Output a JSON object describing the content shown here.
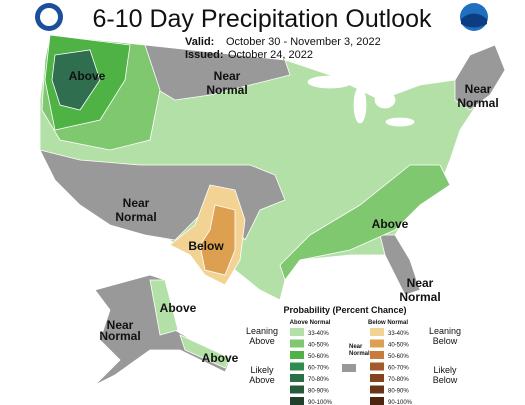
{
  "header": {
    "title": "6-10 Day Precipitation Outlook",
    "valid_label": "Valid:",
    "valid": "October 30 - November 3, 2022",
    "issued_label": "Issued:",
    "issued": "October 24, 2022"
  },
  "map_labels": [
    {
      "lines": [
        "Above"
      ]
    },
    {
      "lines": [
        "Near",
        "Normal"
      ]
    },
    {
      "lines": [
        "Near",
        "Normal"
      ]
    },
    {
      "lines": [
        "Near",
        "Normal"
      ]
    },
    {
      "lines": [
        "Below"
      ]
    },
    {
      "lines": [
        "Above"
      ]
    },
    {
      "lines": [
        "Near",
        "Normal"
      ]
    },
    {
      "lines": [
        "Above"
      ]
    },
    {
      "lines": [
        "Near",
        "Normal"
      ]
    },
    {
      "lines": [
        "Above"
      ]
    }
  ],
  "legend": {
    "title": "Probability (Percent Chance)",
    "above_heading": "Above Normal",
    "below_heading": "Below Normal",
    "near_heading": [
      "Near",
      "Normal"
    ],
    "near_color": "#999999",
    "above": [
      {
        "label": "33-40%",
        "color": "#b3e0a6"
      },
      {
        "label": "40-50%",
        "color": "#80c870"
      },
      {
        "label": "50-60%",
        "color": "#4fb244"
      },
      {
        "label": "60-70%",
        "color": "#2f8b4e"
      },
      {
        "label": "70-80%",
        "color": "#2b6f48"
      },
      {
        "label": "80-90%",
        "color": "#285a3c"
      },
      {
        "label": "90-100%",
        "color": "#20402c"
      }
    ],
    "below": [
      {
        "label": "33-40%",
        "color": "#f3d394"
      },
      {
        "label": "40-50%",
        "color": "#dca050"
      },
      {
        "label": "50-60%",
        "color": "#c87b3c"
      },
      {
        "label": "60-70%",
        "color": "#a35a2a"
      },
      {
        "label": "70-80%",
        "color": "#84441f"
      },
      {
        "label": "80-90%",
        "color": "#6a3418"
      },
      {
        "label": "90-100%",
        "color": "#4c2410"
      }
    ],
    "leaning_above": [
      "Leaning",
      "Above"
    ],
    "likely_above": [
      "Likely",
      "Above"
    ],
    "leaning_below": [
      "Leaning",
      "Below"
    ],
    "likely_below": [
      "Likely",
      "Below"
    ]
  }
}
